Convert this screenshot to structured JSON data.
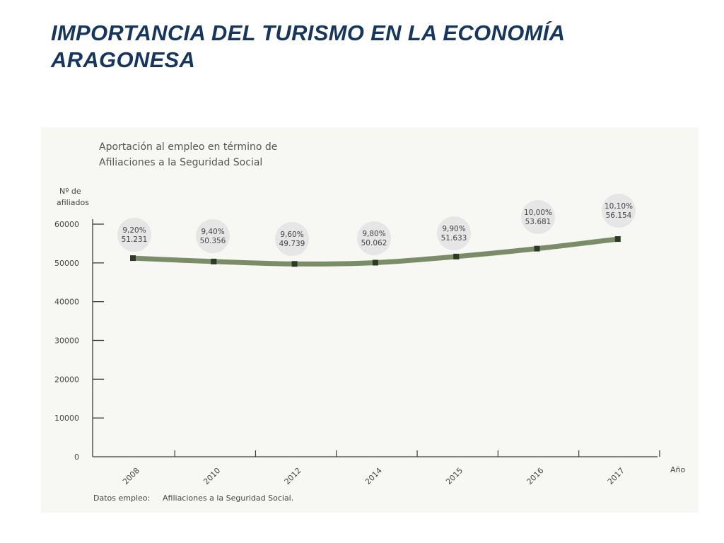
{
  "slide": {
    "title": "IMPORTANCIA DEL TURISMO EN LA ECONOMÍA ARAGONESA"
  },
  "chart_data": {
    "type": "line",
    "title_lines": [
      "Aportación al empleo en término de",
      "Afiliaciones a la Seguridad Social"
    ],
    "ylabel_lines": [
      "Nº de",
      "afiliados"
    ],
    "xlabel": "Año",
    "categories": [
      "2008",
      "2010",
      "2012",
      "2014",
      "2015",
      "2016",
      "2017"
    ],
    "values": [
      51231,
      50356,
      49739,
      50062,
      51633,
      53681,
      56154
    ],
    "data_labels": [
      {
        "pct": "9,20%",
        "value": "51.231"
      },
      {
        "pct": "9,40%",
        "value": "50.356"
      },
      {
        "pct": "9,60%",
        "value": "49.739"
      },
      {
        "pct": "9,80%",
        "value": "50.062"
      },
      {
        "pct": "9,90%",
        "value": "51.633"
      },
      {
        "pct": "10,00%",
        "value": "53.681"
      },
      {
        "pct": "10,10%",
        "value": "56.154"
      }
    ],
    "yticks": [
      0,
      10000,
      20000,
      30000,
      40000,
      50000,
      60000
    ],
    "ylim": [
      0,
      60000
    ],
    "grid": false,
    "line_color": "#7a8c68",
    "marker_color": "#2d3a26",
    "bubble_color": "#e6e6e6",
    "footnote": {
      "label": "Datos empleo:",
      "source": "Afiliaciones a la Seguridad Social."
    }
  }
}
